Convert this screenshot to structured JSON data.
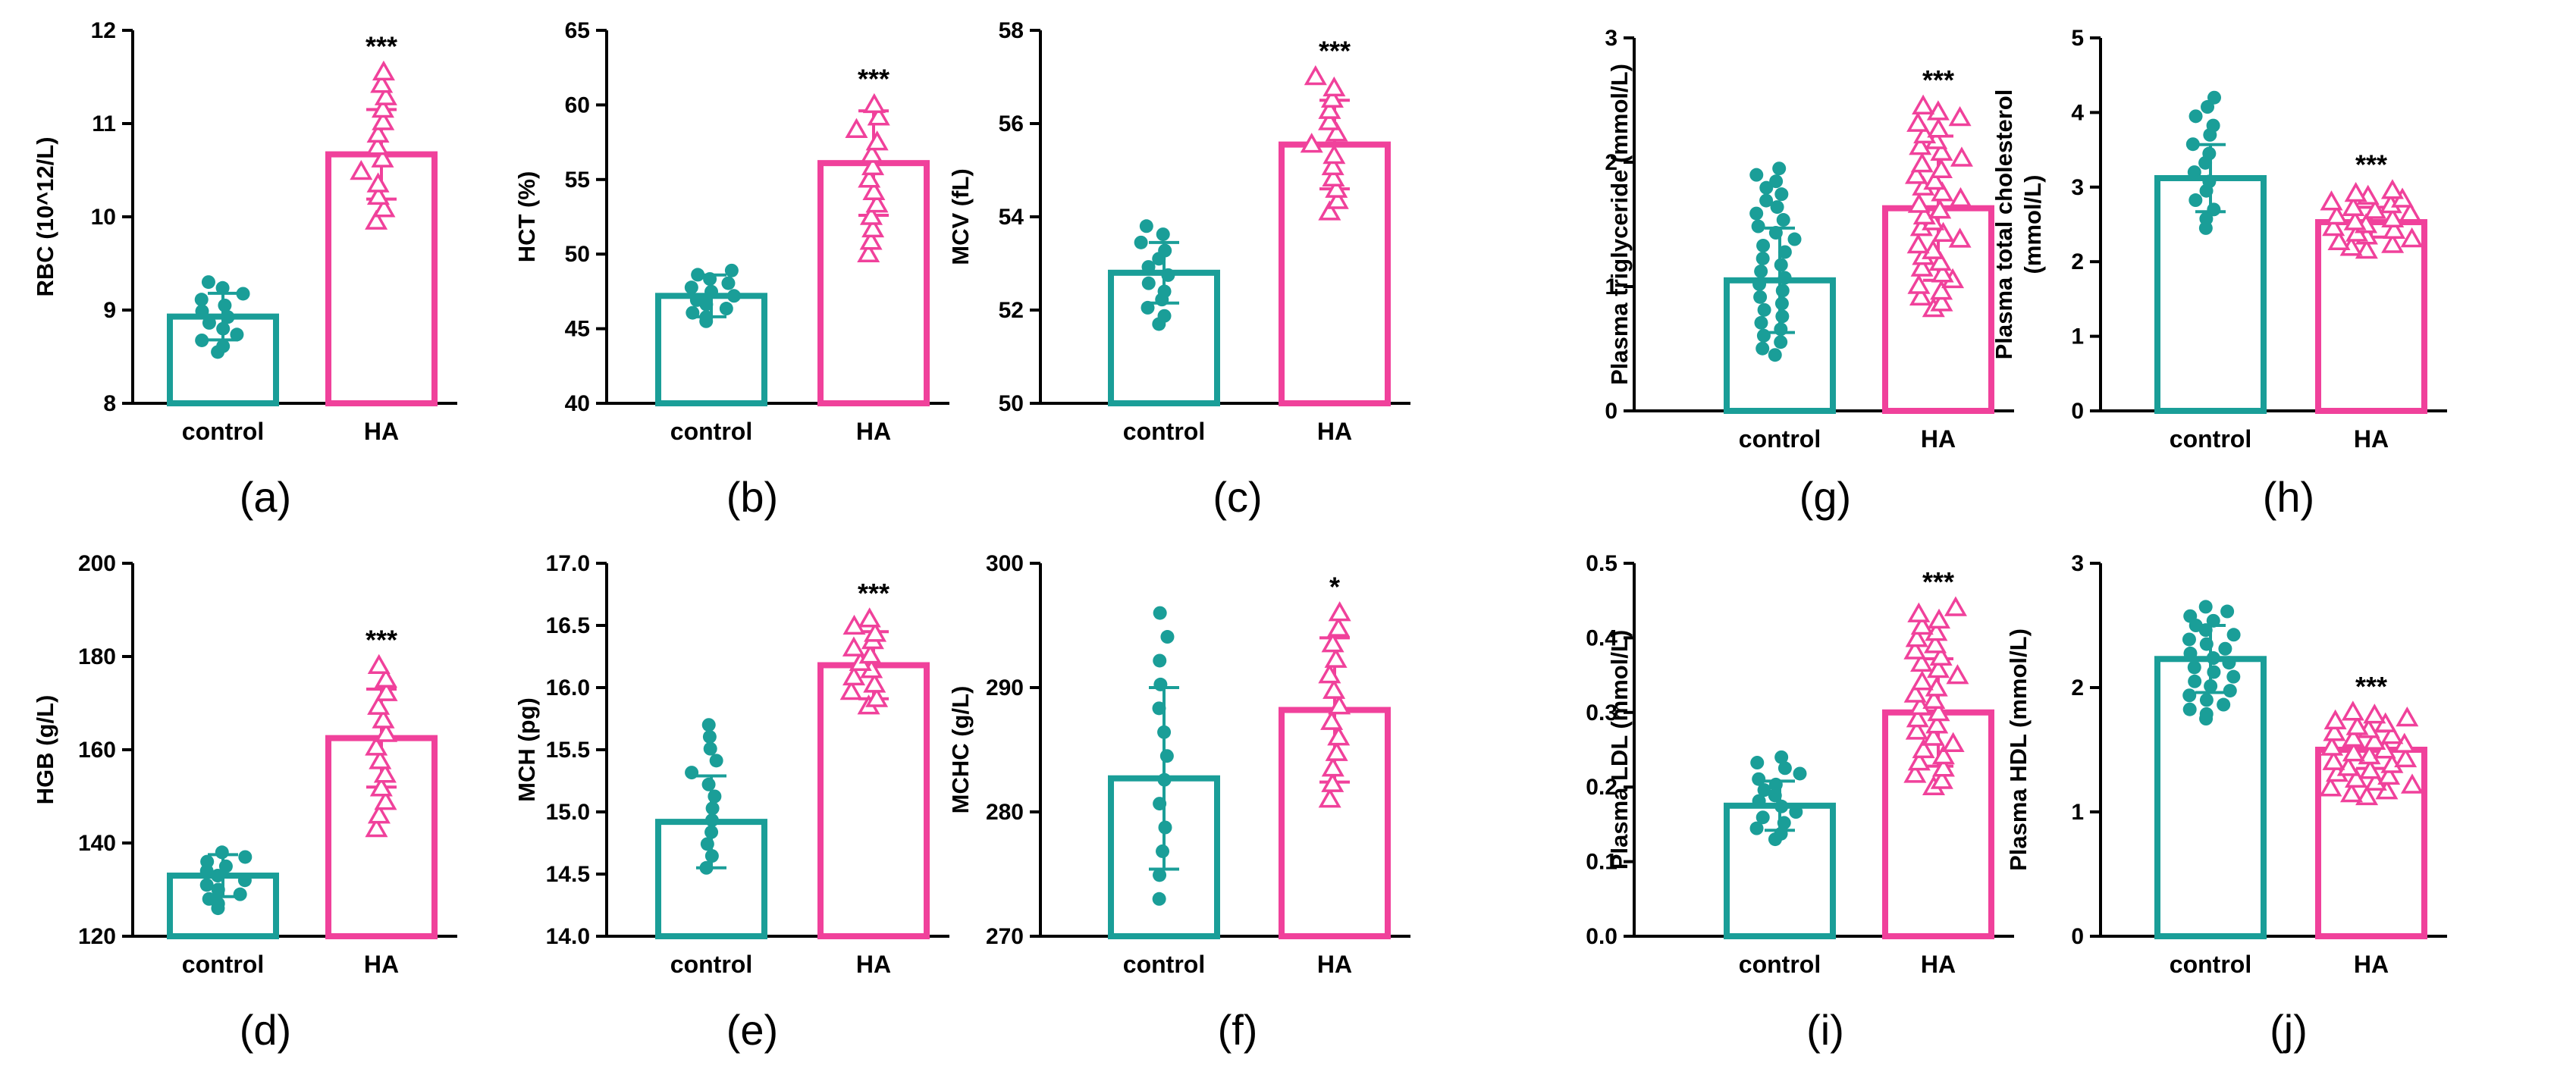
{
  "colors": {
    "control": "#1a9e98",
    "HA": "#f0419b"
  },
  "chart_data": [
    {
      "type": "bar",
      "panel": "(a)",
      "ylabel": "RBC (10^12/L)",
      "categories": [
        "control",
        "HA"
      ],
      "ylim": [
        8,
        12
      ],
      "yticks": [
        "8",
        "9",
        "10",
        "11",
        "12"
      ],
      "means": [
        8.93,
        10.67
      ],
      "sd": [
        0.25,
        0.48
      ],
      "n": [
        13,
        13
      ],
      "point_range": [
        [
          8.55,
          9.3
        ],
        [
          9.95,
          11.55
        ]
      ],
      "significance": "***",
      "sig_on": "HA"
    },
    {
      "type": "bar",
      "panel": "(b)",
      "ylabel": "HCT (%)",
      "categories": [
        "control",
        "HA"
      ],
      "ylim": [
        40,
        65
      ],
      "yticks": [
        "40",
        "45",
        "50",
        "55",
        "60",
        "65"
      ],
      "means": [
        47.2,
        56.1
      ],
      "sd": [
        1.4,
        3.5
      ],
      "n": [
        13,
        13
      ],
      "point_range": [
        [
          45.5,
          48.9
        ],
        [
          50.0,
          60.0
        ]
      ],
      "significance": "***",
      "sig_on": "HA"
    },
    {
      "type": "bar",
      "panel": "(c)",
      "ylabel": "MCV (fL)",
      "categories": [
        "control",
        "HA"
      ],
      "ylim": [
        50,
        58
      ],
      "yticks": [
        "50",
        "52",
        "54",
        "56",
        "58"
      ],
      "means": [
        52.8,
        55.55
      ],
      "sd": [
        0.65,
        0.95
      ],
      "n": [
        13,
        13
      ],
      "point_range": [
        [
          51.7,
          53.8
        ],
        [
          54.1,
          57.0
        ]
      ],
      "significance": "***",
      "sig_on": "HA"
    },
    {
      "type": "bar",
      "panel": "(d)",
      "ylabel": "HGB (g/L)",
      "categories": [
        "control",
        "HA"
      ],
      "ylim": [
        120,
        200
      ],
      "yticks": [
        "120",
        "140",
        "160",
        "180",
        "200"
      ],
      "means": [
        133,
        162.5
      ],
      "sd": [
        4.5,
        10.5
      ],
      "n": [
        13,
        13
      ],
      "point_range": [
        [
          126,
          138
        ],
        [
          143,
          178
        ]
      ],
      "significance": "***",
      "sig_on": "HA"
    },
    {
      "type": "bar",
      "panel": "(e)",
      "ylabel": "MCH (pg)",
      "categories": [
        "control",
        "HA"
      ],
      "ylim": [
        14.0,
        17.0
      ],
      "yticks": [
        "14.0",
        "14.5",
        "15.0",
        "15.5",
        "16.0",
        "16.5",
        "17.0"
      ],
      "means": [
        14.92,
        16.18
      ],
      "sd": [
        0.37,
        0.27
      ],
      "n": [
        13,
        13
      ],
      "point_range": [
        [
          14.55,
          15.7
        ],
        [
          15.85,
          16.55
        ]
      ],
      "significance": "***",
      "sig_on": "HA"
    },
    {
      "type": "bar",
      "panel": "(f)",
      "ylabel": "MCHC (g/L)",
      "categories": [
        "control",
        "HA"
      ],
      "ylim": [
        270,
        300
      ],
      "yticks": [
        "270",
        "280",
        "290",
        "300"
      ],
      "means": [
        282.7,
        288.2
      ],
      "sd": [
        7.3,
        5.8
      ],
      "n": [
        13,
        13
      ],
      "point_range": [
        [
          273,
          296
        ],
        [
          281,
          296
        ]
      ],
      "significance": "*",
      "sig_on": "HA"
    },
    {
      "type": "bar",
      "panel": "(g)",
      "ylabel": "Plasma triglyceride (mmol/L)",
      "categories": [
        "control",
        "HA"
      ],
      "ylim": [
        0,
        3
      ],
      "yticks": [
        "0",
        "1",
        "2",
        "3"
      ],
      "means": [
        1.05,
        1.63
      ],
      "sd": [
        0.42,
        0.58
      ],
      "n": [
        30,
        36
      ],
      "point_range": [
        [
          0.45,
          1.95
        ],
        [
          0.82,
          2.45
        ]
      ],
      "significance": "***",
      "sig_on": "HA"
    },
    {
      "type": "bar",
      "panel": "(h)",
      "ylabel": [
        "Plasma total cholesterol",
        "(mmol/L)"
      ],
      "categories": [
        "control",
        "HA"
      ],
      "ylim": [
        0,
        5
      ],
      "yticks": [
        "0",
        "1",
        "2",
        "3",
        "4",
        "5"
      ],
      "means": [
        3.12,
        2.53
      ],
      "sd": [
        0.45,
        0.2
      ],
      "n": [
        15,
        22
      ],
      "point_range": [
        [
          2.45,
          4.2
        ],
        [
          2.15,
          2.95
        ]
      ],
      "significance": "***",
      "sig_on": "HA"
    },
    {
      "type": "bar",
      "panel": "(i)",
      "ylabel": "Plasma LDL (mmol/L)",
      "categories": [
        "control",
        "HA"
      ],
      "ylim": [
        0,
        0.5
      ],
      "yticks": [
        "0.0",
        "0.1",
        "0.2",
        "0.3",
        "0.4",
        "0.5"
      ],
      "means": [
        0.175,
        0.3
      ],
      "sd": [
        0.033,
        0.072
      ],
      "n": [
        16,
        30
      ],
      "point_range": [
        [
          0.13,
          0.24
        ],
        [
          0.2,
          0.44
        ]
      ],
      "significance": "***",
      "sig_on": "HA"
    },
    {
      "type": "bar",
      "panel": "(j)",
      "ylabel": "Plasma HDL (mmol/L)",
      "categories": [
        "control",
        "HA"
      ],
      "ylim": [
        0,
        3
      ],
      "yticks": [
        "0",
        "1",
        "2",
        "3"
      ],
      "means": [
        2.23,
        1.5
      ],
      "sd": [
        0.27,
        0.15
      ],
      "n": [
        25,
        30
      ],
      "point_range": [
        [
          1.75,
          2.65
        ],
        [
          1.12,
          1.8
        ]
      ],
      "significance": "***",
      "sig_on": "HA"
    }
  ]
}
